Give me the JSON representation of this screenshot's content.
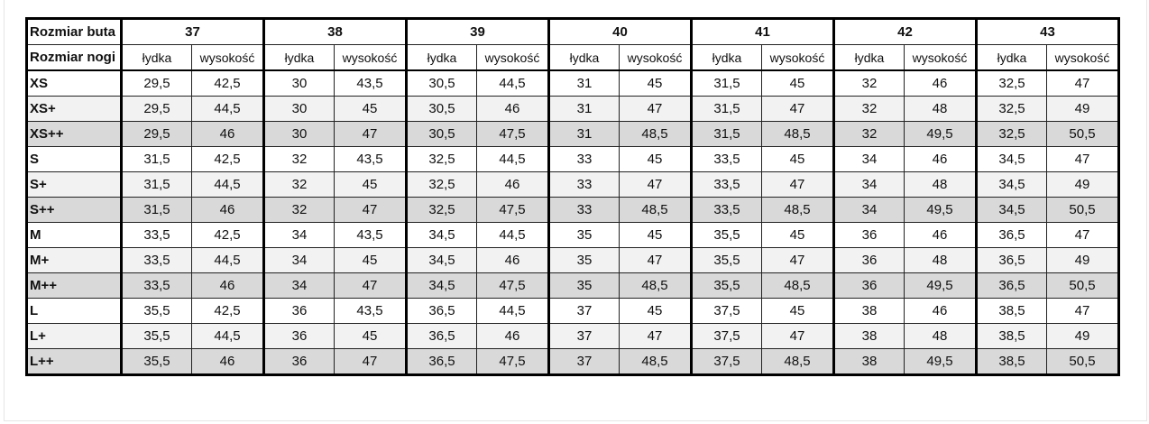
{
  "header": {
    "shoe_size_label": "Rozmiar buta",
    "leg_size_label": "Rozmiar nogi",
    "calf_label": "łydka",
    "height_label": "wysokość"
  },
  "shoe_sizes": [
    "37",
    "38",
    "39",
    "40",
    "41",
    "42",
    "43"
  ],
  "row_colors": {
    "base": "#ffffff",
    "plus": "#f2f2f2",
    "plusplus": "#d9d9d9"
  },
  "rows": [
    {
      "size": "XS",
      "values": [
        "29,5",
        "42,5",
        "30",
        "43,5",
        "30,5",
        "44,5",
        "31",
        "45",
        "31,5",
        "45",
        "32",
        "46",
        "32,5",
        "47"
      ]
    },
    {
      "size": "XS+",
      "values": [
        "29,5",
        "44,5",
        "30",
        "45",
        "30,5",
        "46",
        "31",
        "47",
        "31,5",
        "47",
        "32",
        "48",
        "32,5",
        "49"
      ]
    },
    {
      "size": "XS++",
      "values": [
        "29,5",
        "46",
        "30",
        "47",
        "30,5",
        "47,5",
        "31",
        "48,5",
        "31,5",
        "48,5",
        "32",
        "49,5",
        "32,5",
        "50,5"
      ]
    },
    {
      "size": "S",
      "values": [
        "31,5",
        "42,5",
        "32",
        "43,5",
        "32,5",
        "44,5",
        "33",
        "45",
        "33,5",
        "45",
        "34",
        "46",
        "34,5",
        "47"
      ]
    },
    {
      "size": "S+",
      "values": [
        "31,5",
        "44,5",
        "32",
        "45",
        "32,5",
        "46",
        "33",
        "47",
        "33,5",
        "47",
        "34",
        "48",
        "34,5",
        "49"
      ]
    },
    {
      "size": "S++",
      "values": [
        "31,5",
        "46",
        "32",
        "47",
        "32,5",
        "47,5",
        "33",
        "48,5",
        "33,5",
        "48,5",
        "34",
        "49,5",
        "34,5",
        "50,5"
      ]
    },
    {
      "size": "M",
      "values": [
        "33,5",
        "42,5",
        "34",
        "43,5",
        "34,5",
        "44,5",
        "35",
        "45",
        "35,5",
        "45",
        "36",
        "46",
        "36,5",
        "47"
      ]
    },
    {
      "size": "M+",
      "values": [
        "33,5",
        "44,5",
        "34",
        "45",
        "34,5",
        "46",
        "35",
        "47",
        "35,5",
        "47",
        "36",
        "48",
        "36,5",
        "49"
      ]
    },
    {
      "size": "M++",
      "values": [
        "33,5",
        "46",
        "34",
        "47",
        "34,5",
        "47,5",
        "35",
        "48,5",
        "35,5",
        "48,5",
        "36",
        "49,5",
        "36,5",
        "50,5"
      ]
    },
    {
      "size": "L",
      "values": [
        "35,5",
        "42,5",
        "36",
        "43,5",
        "36,5",
        "44,5",
        "37",
        "45",
        "37,5",
        "45",
        "38",
        "46",
        "38,5",
        "47"
      ]
    },
    {
      "size": "L+",
      "values": [
        "35,5",
        "44,5",
        "36",
        "45",
        "36,5",
        "46",
        "37",
        "47",
        "37,5",
        "47",
        "38",
        "48",
        "38,5",
        "49"
      ]
    },
    {
      "size": "L++",
      "values": [
        "35,5",
        "46",
        "36",
        "47",
        "36,5",
        "47,5",
        "37",
        "48,5",
        "37,5",
        "48,5",
        "38",
        "49,5",
        "38,5",
        "50,5"
      ]
    }
  ]
}
